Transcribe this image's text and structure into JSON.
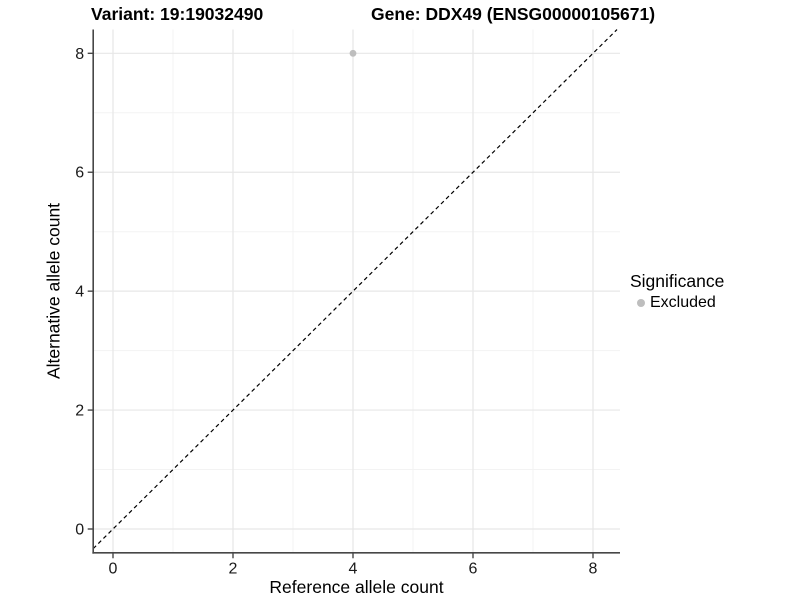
{
  "header": {
    "title_left": "Variant: 19:19032490",
    "title_right": "Gene: DDX49 (ENSG00000105671)"
  },
  "chart_data": {
    "type": "scatter",
    "title": "Variant: 19:19032490   Gene: DDX49 (ENSG00000105671)",
    "xlabel": "Reference allele count",
    "ylabel": "Alternative allele count",
    "x_ticks": [
      0,
      2,
      4,
      6,
      8
    ],
    "y_ticks": [
      0,
      2,
      4,
      6,
      8
    ],
    "x_minor_ticks": [
      1,
      3,
      5,
      7
    ],
    "y_minor_ticks": [
      1,
      3,
      5,
      7
    ],
    "xlim": [
      -0.33,
      8.45
    ],
    "ylim": [
      -0.4,
      8.4
    ],
    "grid": "major-and-minor",
    "points": [
      {
        "x": 4,
        "y": 8,
        "significance": "Excluded"
      }
    ],
    "diagonal_line": {
      "slope": 1,
      "intercept": 0,
      "style": "dashed",
      "color": "#000000"
    },
    "legend": {
      "title": "Significance",
      "position": "right",
      "entries": [
        {
          "label": "Excluded",
          "color": "#bebebe"
        }
      ]
    },
    "colors": {
      "point": "#bebebe",
      "grid_major": "#e7e7e7",
      "grid_minor": "#f3f3f3",
      "axis_line": "#474747",
      "tick": "#474747",
      "text": "#1a1a1a"
    }
  }
}
